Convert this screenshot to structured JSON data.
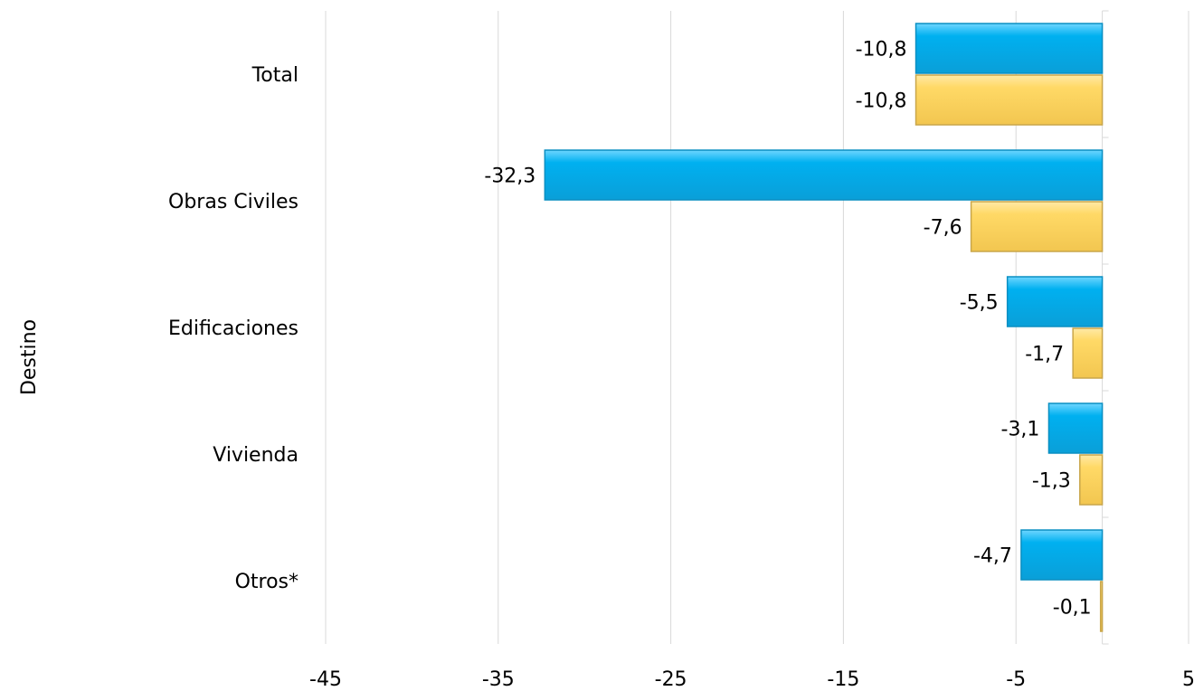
{
  "chart_data": {
    "type": "bar",
    "orientation": "horizontal",
    "title": "",
    "xlabel": "",
    "ylabel": "Destino",
    "xlim": [
      -45,
      5
    ],
    "x_ticks": [
      -45,
      -35,
      -25,
      -15,
      -5,
      5
    ],
    "x_tick_labels": [
      "-45",
      "-35",
      "-25",
      "-15",
      "-5",
      "5"
    ],
    "grid": true,
    "legend": "none",
    "categories": [
      "Total",
      "Obras Civiles",
      "Edificaciones",
      "Vivienda",
      "Otros*"
    ],
    "series": [
      {
        "color": "#00b0f0",
        "values": [
          -10.8,
          -32.3,
          -5.5,
          -3.1,
          -4.7
        ],
        "labels": [
          "-10,8",
          "-32,3",
          "-5,5",
          "-3,1",
          "-4,7"
        ]
      },
      {
        "color": "#ffd966",
        "values": [
          -10.8,
          -7.6,
          -1.7,
          -1.3,
          -0.1
        ],
        "labels": [
          "-10,8",
          "-7,6",
          "-1,7",
          "-1,3",
          "-0,1"
        ]
      }
    ]
  }
}
